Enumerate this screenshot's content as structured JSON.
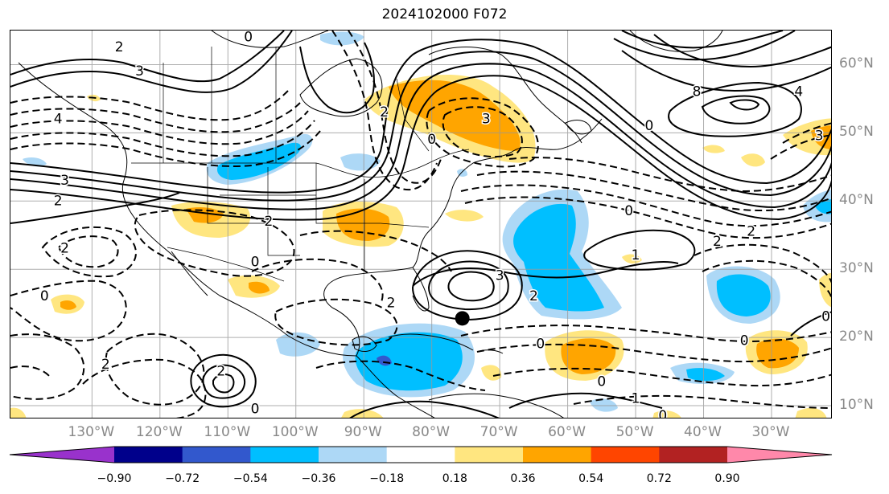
{
  "title": "2024102000 F072",
  "map": {
    "lon_range": [
      -142,
      -21
    ],
    "lat_range": [
      8,
      65
    ],
    "longitude_labels": [
      "130°W",
      "120°W",
      "110°W",
      "100°W",
      "90°W",
      "80°W",
      "70°W",
      "60°W",
      "50°W",
      "40°W",
      "30°W"
    ],
    "longitude_values": [
      -130,
      -120,
      -110,
      -100,
      -90,
      -80,
      -70,
      -60,
      -50,
      -40,
      -30
    ],
    "latitude_labels": [
      "60°N",
      "50°N",
      "40°N",
      "30°N",
      "20°N",
      "10°N"
    ],
    "latitude_values": [
      60,
      50,
      40,
      30,
      20,
      10
    ],
    "gridlines": true,
    "contour_color": "#000000",
    "marker": {
      "name": "black-dot-marker",
      "lon": -75.5,
      "lat": 22.8
    },
    "contour_labels": [
      {
        "text": "2",
        "lon": -126,
        "lat": 62.5
      },
      {
        "text": "3",
        "lon": -123,
        "lat": 59
      },
      {
        "text": "4",
        "lon": -135,
        "lat": 52
      },
      {
        "text": "3",
        "lon": -134,
        "lat": 43
      },
      {
        "text": "2",
        "lon": -135,
        "lat": 40
      },
      {
        "text": "2",
        "lon": -134,
        "lat": 33
      },
      {
        "text": "0",
        "lon": -137,
        "lat": 26
      },
      {
        "text": "2",
        "lon": -128,
        "lat": 16
      },
      {
        "text": "2",
        "lon": -111,
        "lat": 15
      },
      {
        "text": "0",
        "lon": -106,
        "lat": 31
      },
      {
        "text": "2",
        "lon": -104,
        "lat": 37
      },
      {
        "text": "2",
        "lon": -86,
        "lat": 25
      },
      {
        "text": "0",
        "lon": -106,
        "lat": 9.5
      },
      {
        "text": "3",
        "lon": -70,
        "lat": 29
      },
      {
        "text": "2",
        "lon": -65,
        "lat": 26
      },
      {
        "text": "0",
        "lon": -80,
        "lat": 49
      },
      {
        "text": "3",
        "lon": -72,
        "lat": 52
      },
      {
        "text": "2",
        "lon": -87,
        "lat": 53
      },
      {
        "text": "0",
        "lon": -48,
        "lat": 51
      },
      {
        "text": "8",
        "lon": -41,
        "lat": 56
      },
      {
        "text": "0",
        "lon": -51,
        "lat": 38.5
      },
      {
        "text": "1",
        "lon": -50,
        "lat": 32
      },
      {
        "text": "2",
        "lon": -38,
        "lat": 34
      },
      {
        "text": "2",
        "lon": -33,
        "lat": 35.5
      },
      {
        "text": "0",
        "lon": -55,
        "lat": 13.5
      },
      {
        "text": "1",
        "lon": -50,
        "lat": 11
      },
      {
        "text": "0",
        "lon": -46,
        "lat": 8.5
      },
      {
        "text": "0",
        "lon": -34,
        "lat": 19.5
      },
      {
        "text": "0",
        "lon": -22,
        "lat": 23
      },
      {
        "text": "3",
        "lon": -23,
        "lat": 49.5
      },
      {
        "text": "4",
        "lon": -26,
        "lat": 56
      },
      {
        "text": "0",
        "lon": -64,
        "lat": 19
      },
      {
        "text": "0",
        "lon": -107,
        "lat": 64
      }
    ]
  },
  "colorbar": {
    "colors": [
      "#9932cc",
      "#00008b",
      "#3258cd",
      "#00bfff",
      "#add8f6",
      "#ffffff",
      "#ffe680",
      "#ffa500",
      "#ff4500",
      "#b22222",
      "#ff88aa"
    ],
    "labels": [
      "−0.90",
      "−0.72",
      "−0.54",
      "−0.36",
      "−0.18",
      "0.18",
      "0.36",
      "0.54",
      "0.72",
      "0.90"
    ]
  }
}
